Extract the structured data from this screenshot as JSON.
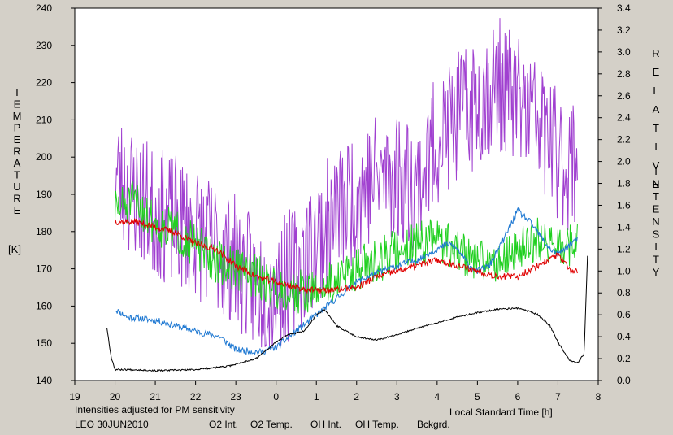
{
  "chart_data": {
    "type": "line",
    "xlabel": "Local Standard Time [h]",
    "x_ticks": [
      "19",
      "20",
      "21",
      "22",
      "23",
      "0",
      "1",
      "2",
      "3",
      "4",
      "5",
      "6",
      "7",
      "8"
    ],
    "x_range": [
      19,
      32
    ],
    "ylabel_left": [
      "T",
      "E",
      "M",
      "P",
      "E",
      "R",
      "A",
      "T",
      "U",
      "R",
      "E"
    ],
    "ylabel_left_unit": "[K]",
    "ylim_left": [
      140,
      240
    ],
    "y_ticks_left": [
      140,
      150,
      160,
      170,
      180,
      190,
      200,
      210,
      220,
      230,
      240
    ],
    "ylabel_right": [
      "R",
      "E",
      "L",
      "A",
      "T",
      "I",
      "V",
      "E"
    ],
    "ylabel_right2": [
      "I",
      "N",
      "T",
      "E",
      "N",
      "S",
      "I",
      "T",
      "Y"
    ],
    "ylim_right": [
      0.0,
      3.4
    ],
    "y_ticks_right": [
      "0.0",
      "0.2",
      "0.4",
      "0.6",
      "0.8",
      "1.0",
      "1.2",
      "1.4",
      "1.6",
      "1.8",
      "2.0",
      "2.2",
      "2.4",
      "2.6",
      "2.8",
      "3.0",
      "3.2",
      "3.4"
    ],
    "note": "Intensities adjusted for PM sensitivity",
    "site_date": "LEO 30JUN2010",
    "grid": false,
    "series": [
      {
        "name": "O2 Int.",
        "color": "#1e78d2",
        "axis": "right",
        "noise": 0.03,
        "seed": 11,
        "x": [
          20.0,
          20.3,
          21.0,
          22.0,
          22.6,
          23.0,
          23.6,
          24.0,
          24.5,
          25.0,
          25.5,
          26.0,
          26.5,
          27.0,
          27.5,
          28.0,
          28.3,
          28.5,
          28.8,
          29.0,
          29.3,
          29.6,
          30.0,
          30.3,
          30.8,
          31.0,
          31.5
        ],
        "y": [
          0.65,
          0.58,
          0.55,
          0.45,
          0.4,
          0.28,
          0.26,
          0.3,
          0.45,
          0.6,
          0.75,
          0.9,
          0.98,
          1.05,
          1.1,
          1.2,
          1.25,
          1.2,
          1.05,
          1.0,
          1.05,
          1.25,
          1.55,
          1.45,
          1.2,
          1.15,
          1.3
        ]
      },
      {
        "name": "O2 Temp.",
        "color": "#a040d0",
        "axis": "left",
        "noise": 18,
        "seed": 23,
        "x": [
          20.0,
          20.5,
          21.0,
          22.0,
          23.0,
          23.5,
          24.0,
          24.5,
          25.0,
          25.5,
          26.0,
          26.5,
          27.0,
          27.5,
          28.0,
          28.5,
          29.0,
          29.5,
          30.0,
          30.5,
          31.0,
          31.3,
          31.5
        ],
        "y": [
          195,
          190,
          185,
          180,
          172,
          165,
          165,
          170,
          178,
          185,
          190,
          195,
          195,
          192,
          205,
          210,
          215,
          220,
          215,
          210,
          200,
          198,
          200
        ]
      },
      {
        "name": "OH Int.",
        "color": "#e00000",
        "axis": "right",
        "noise": 0.03,
        "seed": 37,
        "x": [
          20.0,
          20.5,
          21.0,
          21.5,
          22.0,
          22.5,
          23.0,
          23.5,
          24.0,
          24.5,
          25.0,
          25.5,
          26.0,
          26.5,
          27.0,
          27.5,
          28.0,
          28.5,
          29.0,
          29.5,
          30.0,
          30.5,
          31.0,
          31.3,
          31.5
        ],
        "y": [
          1.45,
          1.45,
          1.4,
          1.35,
          1.25,
          1.2,
          1.05,
          0.95,
          0.9,
          0.85,
          0.82,
          0.83,
          0.85,
          0.95,
          1.0,
          1.05,
          1.1,
          1.05,
          1.0,
          0.95,
          0.95,
          1.05,
          1.15,
          1.0,
          1.0
        ]
      },
      {
        "name": "OH Temp.",
        "color": "#20d020",
        "axis": "left",
        "noise": 6,
        "seed": 51,
        "x": [
          20.0,
          20.5,
          21.0,
          21.5,
          22.0,
          22.5,
          23.0,
          23.5,
          24.0,
          24.5,
          25.0,
          25.5,
          26.0,
          26.5,
          27.0,
          27.5,
          28.0,
          28.5,
          29.0,
          29.5,
          30.0,
          30.5,
          31.0,
          31.5
        ],
        "y": [
          186,
          188,
          182,
          180,
          176,
          172,
          170,
          168,
          165,
          164,
          164,
          167,
          170,
          172,
          175,
          177,
          178,
          175,
          172,
          172,
          175,
          178,
          176,
          176
        ]
      },
      {
        "name": "Bckgrd.",
        "color": "#000000",
        "axis": "right",
        "noise": 0.007,
        "seed": 67,
        "x": [
          19.8,
          19.9,
          20.0,
          20.5,
          21.0,
          22.0,
          22.8,
          23.5,
          24.0,
          24.3,
          24.7,
          25.0,
          25.2,
          25.5,
          26.0,
          26.5,
          27.0,
          28.0,
          28.5,
          29.0,
          29.5,
          30.0,
          30.3,
          30.5,
          30.8,
          31.0,
          31.3,
          31.5,
          31.65,
          31.75
        ],
        "y": [
          0.48,
          0.22,
          0.1,
          0.1,
          0.09,
          0.1,
          0.13,
          0.2,
          0.35,
          0.42,
          0.45,
          0.6,
          0.65,
          0.5,
          0.4,
          0.37,
          0.42,
          0.53,
          0.58,
          0.62,
          0.65,
          0.66,
          0.63,
          0.6,
          0.5,
          0.35,
          0.18,
          0.16,
          0.25,
          1.3
        ]
      }
    ]
  }
}
